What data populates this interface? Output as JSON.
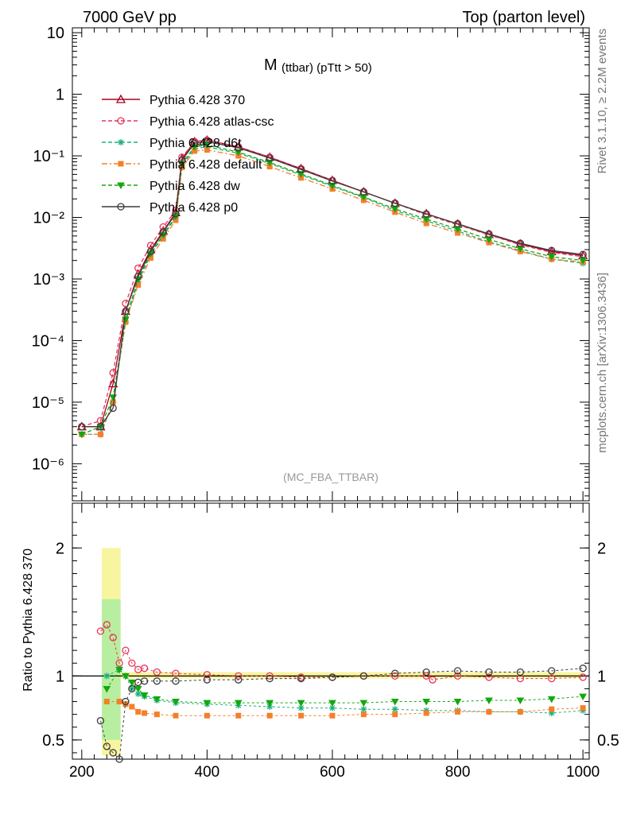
{
  "header": {
    "left_label": "7000 GeV pp",
    "right_label": "Top (parton level)"
  },
  "side_labels": {
    "rivet": "Rivet 3.1.10, ≥ 2.2M events",
    "source": "mcplots.cern.ch [arXiv:1306.3436]"
  },
  "chart_data": [
    {
      "type": "line",
      "panel": "main",
      "title": "M(ttbar) (pTtt > 50)",
      "title_main": "M",
      "title_sub": "(ttbar) (pTtt > 50)",
      "annotation": "(MC_FBA_TTBAR)",
      "log_y": true,
      "xlim": [
        185,
        1010
      ],
      "ylim": [
        2.5e-07,
        12
      ],
      "x_ticks": [
        200,
        400,
        600,
        800,
        1000
      ],
      "y_ticks": [
        {
          "value": 10,
          "label": "10"
        },
        {
          "value": 1,
          "label": "1"
        },
        {
          "value": 0.1,
          "label": "10⁻¹"
        },
        {
          "value": 0.01,
          "label": "10⁻²"
        },
        {
          "value": 0.001,
          "label": "10⁻³"
        },
        {
          "value": 0.0001,
          "label": "10⁻⁴"
        },
        {
          "value": 1e-05,
          "label": "10⁻⁵"
        },
        {
          "value": 1e-06,
          "label": "10⁻⁶"
        }
      ],
      "legend_position": "top-left",
      "series": [
        {
          "name": "Pythia 6.428 370",
          "color": "#a50021",
          "marker": "triangle-open",
          "dash": "solid",
          "x": [
            200,
            230,
            250,
            270,
            290,
            310,
            330,
            350,
            360,
            380,
            400,
            450,
            500,
            550,
            600,
            650,
            700,
            750,
            800,
            850,
            900,
            950,
            1000
          ],
          "y": [
            4e-06,
            4e-06,
            2e-05,
            0.0003,
            0.0012,
            0.003,
            0.006,
            0.012,
            0.09,
            0.17,
            0.18,
            0.14,
            0.095,
            0.062,
            0.04,
            0.026,
            0.017,
            0.0115,
            0.0078,
            0.0053,
            0.0037,
            0.0028,
            0.0024
          ]
        },
        {
          "name": "Pythia 6.428 atlas-csc",
          "color": "#e8345a",
          "marker": "circle-open",
          "dash": "dashed",
          "x": [
            200,
            230,
            250,
            270,
            290,
            310,
            330,
            350,
            360,
            380,
            400,
            450,
            500,
            550,
            600,
            650,
            700,
            750,
            800,
            850,
            900,
            950,
            1000
          ],
          "y": [
            4e-06,
            5e-06,
            3e-05,
            0.0004,
            0.0015,
            0.0035,
            0.007,
            0.013,
            0.095,
            0.17,
            0.18,
            0.14,
            0.095,
            0.062,
            0.04,
            0.026,
            0.017,
            0.011,
            0.0076,
            0.0052,
            0.0036,
            0.0027,
            0.0023
          ]
        },
        {
          "name": "Pythia 6.428 d6t",
          "color": "#1fb07e",
          "marker": "star",
          "dash": "dashed",
          "x": [
            200,
            230,
            250,
            270,
            290,
            310,
            330,
            350,
            360,
            380,
            400,
            450,
            500,
            550,
            600,
            650,
            700,
            750,
            800,
            850,
            900,
            950,
            1000
          ],
          "y": [
            3e-06,
            3e-06,
            1e-05,
            0.0002,
            0.0009,
            0.0025,
            0.005,
            0.01,
            0.07,
            0.13,
            0.14,
            0.11,
            0.075,
            0.049,
            0.032,
            0.021,
            0.013,
            0.0088,
            0.006,
            0.004,
            0.0029,
            0.0021,
            0.0018
          ]
        },
        {
          "name": "Pythia 6.428 default",
          "color": "#f47f2b",
          "marker": "square",
          "dash": "dashdot",
          "x": [
            200,
            230,
            250,
            270,
            290,
            310,
            330,
            350,
            360,
            380,
            400,
            450,
            500,
            550,
            600,
            650,
            700,
            750,
            800,
            850,
            900,
            950,
            1000
          ],
          "y": [
            3e-06,
            3e-06,
            1e-05,
            0.0002,
            0.0008,
            0.0022,
            0.0045,
            0.009,
            0.065,
            0.12,
            0.125,
            0.1,
            0.067,
            0.044,
            0.029,
            0.019,
            0.0122,
            0.008,
            0.0056,
            0.0039,
            0.0028,
            0.0021,
            0.0019
          ]
        },
        {
          "name": "Pythia 6.428 dw",
          "color": "#13a80f",
          "marker": "triangle-down",
          "dash": "dashed",
          "x": [
            200,
            230,
            250,
            270,
            290,
            310,
            330,
            350,
            360,
            380,
            400,
            450,
            500,
            550,
            600,
            650,
            700,
            750,
            800,
            850,
            900,
            950,
            1000
          ],
          "y": [
            3e-06,
            4e-06,
            1.2e-05,
            0.00022,
            0.001,
            0.0026,
            0.0052,
            0.0105,
            0.075,
            0.14,
            0.15,
            0.115,
            0.078,
            0.051,
            0.033,
            0.0215,
            0.0138,
            0.0094,
            0.0065,
            0.0044,
            0.0031,
            0.0023,
            0.002
          ]
        },
        {
          "name": "Pythia 6.428 p0",
          "color": "#3c3c3c",
          "marker": "circle-open",
          "dash": "solid",
          "x": [
            200,
            230,
            250,
            270,
            290,
            310,
            330,
            350,
            360,
            380,
            400,
            450,
            500,
            550,
            600,
            650,
            700,
            750,
            800,
            850,
            900,
            950,
            1000
          ],
          "y": [
            4e-06,
            4e-06,
            8e-06,
            0.0003,
            0.0011,
            0.0028,
            0.0058,
            0.0115,
            0.085,
            0.16,
            0.17,
            0.135,
            0.092,
            0.06,
            0.039,
            0.026,
            0.017,
            0.0114,
            0.0079,
            0.0054,
            0.0038,
            0.0029,
            0.0025
          ]
        }
      ]
    },
    {
      "type": "line",
      "panel": "ratio",
      "ylabel": "Ratio to Pythia 6.428 370",
      "xlim": [
        185,
        1010
      ],
      "ylim": [
        0.35,
        2.35
      ],
      "x_ticks": [
        200,
        400,
        600,
        800,
        1000
      ],
      "y_ticks": [
        {
          "value": 0.5,
          "label": "0.5"
        },
        {
          "value": 1,
          "label": "1"
        },
        {
          "value": 2,
          "label": "2"
        }
      ],
      "reference_line": 1,
      "series": [
        {
          "name": "Pythia 6.428 atlas-csc",
          "color": "#e8345a",
          "marker": "circle-open",
          "x": [
            230,
            240,
            250,
            260,
            270,
            280,
            290,
            300,
            320,
            350,
            400,
            450,
            500,
            550,
            600,
            650,
            700,
            750,
            760,
            800,
            850,
            900,
            950,
            1000
          ],
          "y": [
            1.35,
            1.4,
            1.3,
            1.1,
            1.2,
            1.1,
            1.05,
            1.06,
            1.03,
            1.02,
            1.01,
            1.0,
            1.0,
            0.99,
            0.99,
            1.0,
            1.0,
            1.0,
            0.97,
            1.0,
            0.99,
            0.98,
            0.98,
            0.99
          ]
        },
        {
          "name": "Pythia 6.428 d6t",
          "color": "#1fb07e",
          "marker": "star",
          "x": [
            240,
            260,
            270,
            280,
            290,
            300,
            320,
            350,
            400,
            450,
            500,
            550,
            600,
            650,
            700,
            750,
            800,
            850,
            900,
            950,
            1000
          ],
          "y": [
            1.0,
            1.05,
            1.0,
            0.9,
            0.86,
            0.84,
            0.81,
            0.79,
            0.78,
            0.77,
            0.76,
            0.75,
            0.75,
            0.74,
            0.74,
            0.73,
            0.73,
            0.72,
            0.72,
            0.71,
            0.73
          ]
        },
        {
          "name": "Pythia 6.428 default",
          "color": "#f47f2b",
          "marker": "square",
          "x": [
            240,
            260,
            270,
            280,
            290,
            300,
            320,
            350,
            400,
            450,
            500,
            550,
            600,
            650,
            700,
            750,
            800,
            850,
            900,
            950,
            1000
          ],
          "y": [
            0.8,
            0.8,
            0.78,
            0.76,
            0.72,
            0.71,
            0.7,
            0.69,
            0.69,
            0.69,
            0.69,
            0.69,
            0.69,
            0.7,
            0.7,
            0.71,
            0.72,
            0.72,
            0.72,
            0.74,
            0.75
          ]
        },
        {
          "name": "Pythia 6.428 dw",
          "color": "#13a80f",
          "marker": "triangle-down",
          "x": [
            240,
            260,
            270,
            280,
            290,
            300,
            320,
            350,
            400,
            450,
            500,
            550,
            600,
            650,
            700,
            750,
            800,
            850,
            900,
            950,
            1000
          ],
          "y": [
            0.9,
            1.05,
            1.0,
            0.95,
            0.9,
            0.85,
            0.82,
            0.8,
            0.79,
            0.79,
            0.79,
            0.79,
            0.79,
            0.79,
            0.8,
            0.8,
            0.8,
            0.81,
            0.81,
            0.82,
            0.84
          ]
        },
        {
          "name": "Pythia 6.428 p0",
          "color": "#3c3c3c",
          "marker": "circle-open",
          "x": [
            230,
            240,
            250,
            260,
            270,
            280,
            290,
            300,
            320,
            350,
            400,
            450,
            500,
            550,
            600,
            650,
            700,
            750,
            800,
            850,
            900,
            950,
            1000
          ],
          "y": [
            0.65,
            0.45,
            0.4,
            0.35,
            0.8,
            0.9,
            0.95,
            0.96,
            0.96,
            0.96,
            0.97,
            0.97,
            0.98,
            0.98,
            0.99,
            1.0,
            1.02,
            1.03,
            1.04,
            1.03,
            1.03,
            1.04,
            1.06
          ]
        }
      ]
    }
  ]
}
